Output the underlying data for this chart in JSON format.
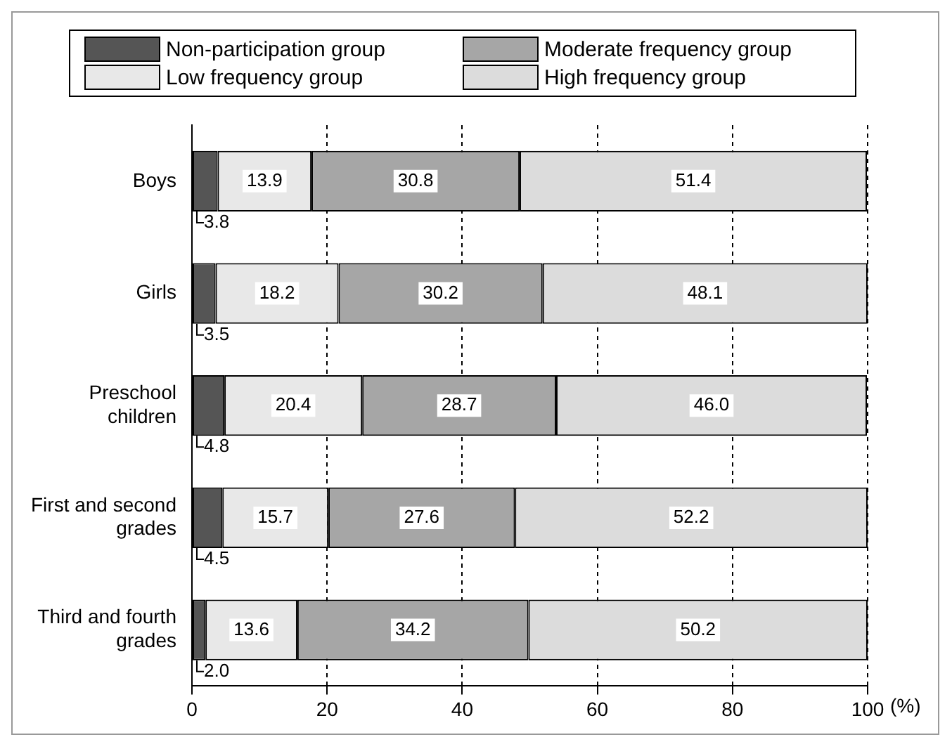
{
  "chart_data": {
    "type": "bar",
    "orientation": "horizontal",
    "stacked": true,
    "xlabel": "(%)",
    "categories": [
      "Boys",
      "Girls",
      "Preschool children",
      "First and second grades",
      "Third and fourth grades"
    ],
    "series": [
      {
        "name": "Non-participation group",
        "color": "#555555",
        "values": [
          3.8,
          3.5,
          4.8,
          4.5,
          2.0
        ],
        "value_labels": [
          "3.8",
          "3.5",
          "4.8",
          "4.5",
          "2.0"
        ]
      },
      {
        "name": "Low frequency group",
        "color": "#e8e8e8",
        "values": [
          13.9,
          18.2,
          20.4,
          15.7,
          13.6
        ],
        "value_labels": [
          "13.9",
          "18.2",
          "20.4",
          "15.7",
          "13.6"
        ]
      },
      {
        "name": "Moderate frequency group",
        "color": "#a6a6a6",
        "values": [
          30.8,
          30.2,
          28.7,
          27.6,
          34.2
        ],
        "value_labels": [
          "30.8",
          "30.2",
          "28.7",
          "27.6",
          "34.2"
        ]
      },
      {
        "name": "High frequency group",
        "color": "#dcdcdc",
        "values": [
          51.4,
          48.1,
          46.0,
          52.2,
          50.2
        ],
        "value_labels": [
          "51.4",
          "48.1",
          "46.0",
          "52.2",
          "50.2"
        ]
      }
    ],
    "xlim": [
      0,
      100
    ],
    "xticks": [
      0,
      20,
      40,
      60,
      80,
      100
    ],
    "grid": "x",
    "legend": "top"
  }
}
